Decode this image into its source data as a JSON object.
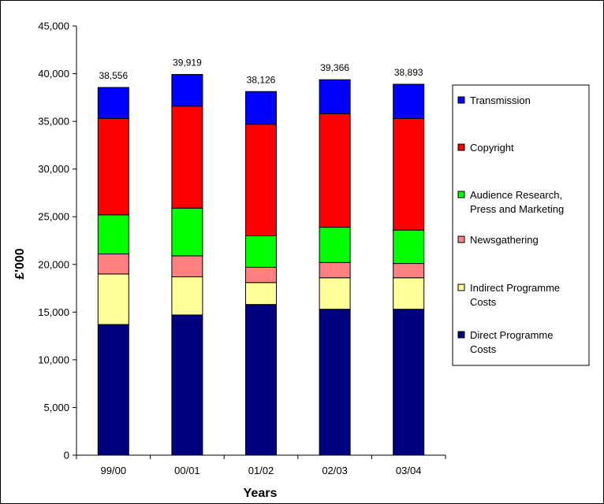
{
  "chart_data": {
    "type": "bar",
    "stacked": true,
    "title": "",
    "xlabel": "Years",
    "ylabel": "£'000",
    "ylim": [
      0,
      45000
    ],
    "yticks": [
      0,
      5000,
      10000,
      15000,
      20000,
      25000,
      30000,
      35000,
      40000,
      45000
    ],
    "ytick_labels": [
      "0",
      "5,000",
      "10,000",
      "15,000",
      "20,000",
      "25,000",
      "30,000",
      "35,000",
      "40,000",
      "45,000"
    ],
    "categories": [
      "99/00",
      "00/01",
      "01/02",
      "02/03",
      "03/04"
    ],
    "totals": [
      38556,
      39919,
      38126,
      39366,
      38893
    ],
    "total_labels": [
      "38,556",
      "39,919",
      "38,126",
      "39,366",
      "38,893"
    ],
    "series": [
      {
        "name": "Direct Programme Costs",
        "color": "#000080",
        "values": [
          13700,
          14700,
          15800,
          15300,
          15300
        ]
      },
      {
        "name": "Indirect Programme Costs",
        "color": "#ffff99",
        "values": [
          5300,
          4000,
          2300,
          3300,
          3300
        ]
      },
      {
        "name": "Newsgathering",
        "color": "#ff8080",
        "values": [
          2100,
          2200,
          1600,
          1600,
          1500
        ]
      },
      {
        "name": "Audience Research, Press and Marketing",
        "color": "#00ff00",
        "values": [
          4100,
          5000,
          3300,
          3700,
          3500
        ]
      },
      {
        "name": "Copyright",
        "color": "#ff0000",
        "values": [
          10100,
          10700,
          11700,
          11900,
          11700
        ]
      },
      {
        "name": "Transmission",
        "color": "#0000ff",
        "values": [
          3256,
          3319,
          3426,
          3566,
          3593
        ]
      }
    ],
    "legend_order": [
      "Transmission",
      "Copyright",
      "Audience Research, Press and Marketing",
      "Newsgathering",
      "Indirect Programme Costs",
      "Direct Programme Costs"
    ],
    "legend_lines": [
      [
        "Transmission"
      ],
      [
        "Copyright"
      ],
      [
        "Audience Research,",
        "Press and Marketing"
      ],
      [
        "Newsgathering"
      ],
      [
        "Indirect Programme",
        "Costs"
      ],
      [
        "Direct Programme",
        "Costs"
      ]
    ],
    "legend_position": "right",
    "grid": false
  }
}
